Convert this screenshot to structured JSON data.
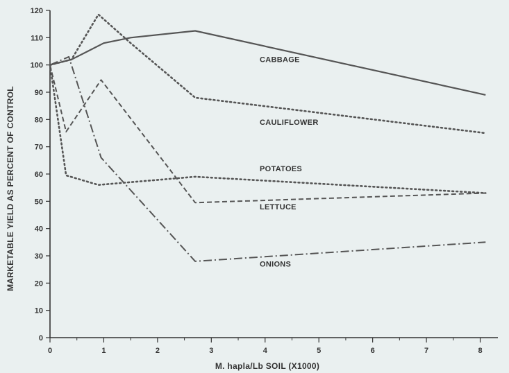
{
  "chart_data": {
    "type": "line",
    "title": "",
    "xlabel": "M. hapla/Lb SOIL (X1000)",
    "ylabel": "MARKETABLE YIELD AS PERCENT OF CONTROL",
    "xlim": [
      0,
      8.2
    ],
    "ylim": [
      0,
      120
    ],
    "x_ticks": [
      "0",
      "1",
      "2",
      "3",
      "4",
      "5",
      "6",
      "7",
      "8"
    ],
    "y_ticks": [
      "0",
      "10",
      "20",
      "30",
      "40",
      "50",
      "60",
      "70",
      "80",
      "90",
      "100",
      "110",
      "120"
    ],
    "grid": false,
    "legend": "inline labels",
    "series": [
      {
        "name": "CABBAGE",
        "style": "solid",
        "x": [
          0,
          0.4,
          1,
          1.5,
          2.7,
          8.1
        ],
        "y": [
          100,
          102,
          108,
          110,
          112.5,
          89
        ]
      },
      {
        "name": "CAULIFLOWER",
        "style": "dotted",
        "x": [
          0,
          0.4,
          0.9,
          1.5,
          2.7,
          8.1
        ],
        "y": [
          100,
          102,
          118.5,
          108,
          88,
          75
        ]
      },
      {
        "name": "POTATOES",
        "style": "dotted",
        "x": [
          0,
          0.3,
          0.9,
          2.7,
          8.1
        ],
        "y": [
          100,
          59.5,
          56,
          59,
          53
        ]
      },
      {
        "name": "LETTUCE",
        "style": "dashed",
        "x": [
          0,
          0.3,
          0.95,
          2.7,
          8.1
        ],
        "y": [
          100,
          75.5,
          94.5,
          49.5,
          53
        ]
      },
      {
        "name": "ONIONS",
        "style": "dashdot",
        "x": [
          0,
          0.35,
          0.95,
          2.7,
          8.1
        ],
        "y": [
          100,
          103,
          66,
          28,
          35
        ]
      }
    ]
  },
  "colors": {
    "background": "#eaf0f0",
    "line": "#555555",
    "axis": "#333333"
  }
}
